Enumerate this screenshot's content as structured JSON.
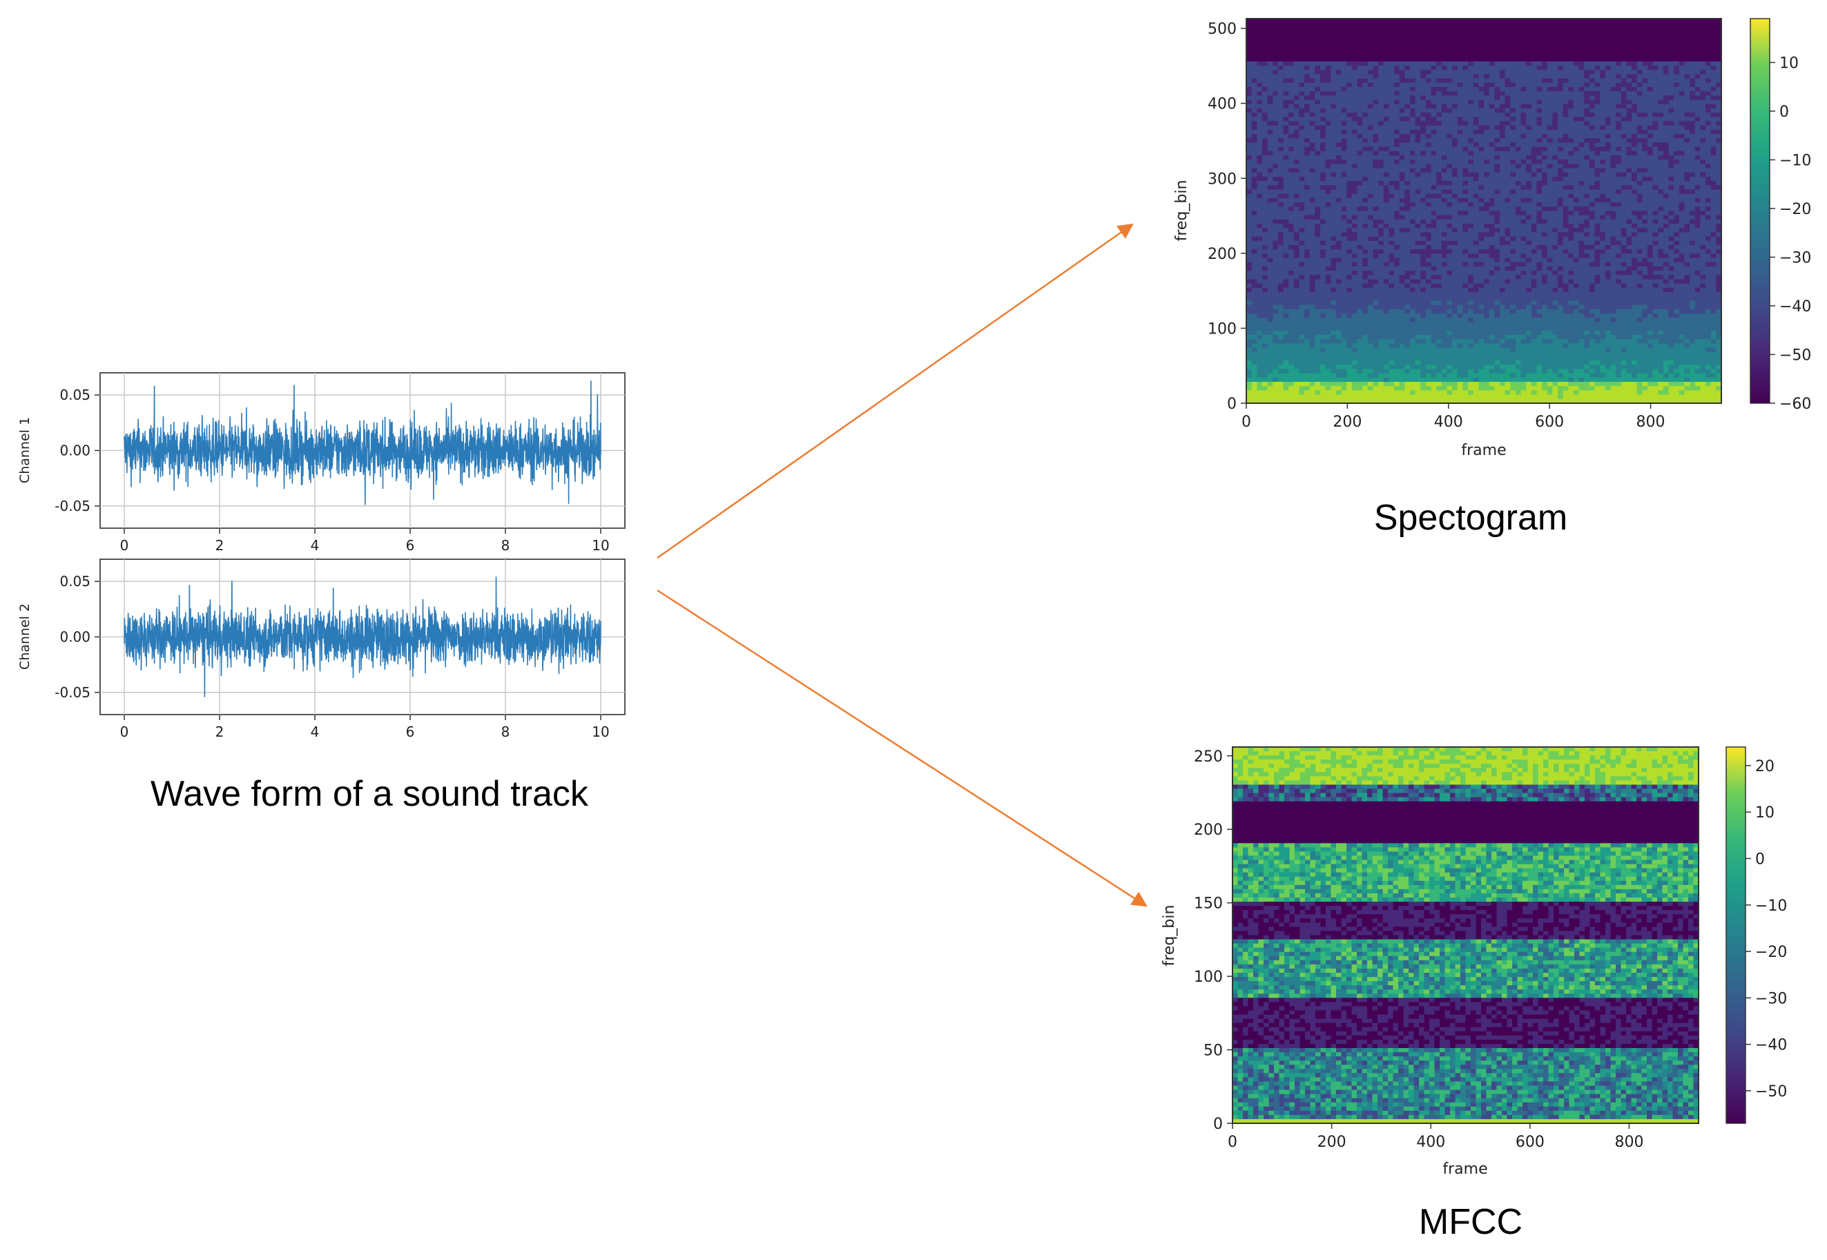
{
  "captions": {
    "waveform": "Wave form of a sound track",
    "spectrogram": "Spectogram",
    "mfcc": "MFCC"
  },
  "colors": {
    "wave": "#2b7bb9",
    "arrow": "#ed7d31",
    "grid": "#c8c8c8"
  },
  "chart_data": [
    {
      "type": "line",
      "ylabel": "Channel 1",
      "xlim": [
        0,
        10
      ],
      "ylim": [
        -0.07,
        0.07
      ],
      "xticks": [
        "0",
        "2",
        "4",
        "6",
        "8",
        "10"
      ],
      "yticks": [
        "0.05",
        "0.00",
        "-0.05"
      ],
      "grid": true,
      "series": [
        {
          "description": "noise-like audio waveform",
          "range": [
            -0.065,
            0.063
          ]
        }
      ]
    },
    {
      "type": "line",
      "ylabel": "Channel 2",
      "xlim": [
        0,
        10
      ],
      "ylim": [
        -0.07,
        0.07
      ],
      "xticks": [
        "0",
        "2",
        "4",
        "6",
        "8",
        "10"
      ],
      "yticks": [
        "0.05",
        "0.00",
        "-0.05"
      ],
      "grid": true,
      "series": [
        {
          "description": "noise-like audio waveform",
          "range": [
            -0.068,
            0.065
          ]
        }
      ]
    },
    {
      "type": "heatmap",
      "xlabel": "frame",
      "ylabel": "freq_bin",
      "xlim": [
        0,
        940
      ],
      "ylim": [
        0,
        513
      ],
      "xticks": [
        "0",
        "200",
        "400",
        "600",
        "800"
      ],
      "yticks": [
        "0",
        "100",
        "200",
        "300",
        "400",
        "500"
      ],
      "colorbar": {
        "range": [
          -60,
          19
        ],
        "ticks": [
          "10",
          "0",
          "−10",
          "−20",
          "−30",
          "−40",
          "−50",
          "−60"
        ]
      },
      "colormap": "viridis"
    },
    {
      "type": "heatmap",
      "xlabel": "frame",
      "ylabel": "freq_bin",
      "xlim": [
        0,
        940
      ],
      "ylim": [
        0,
        256
      ],
      "xticks": [
        "0",
        "200",
        "400",
        "600",
        "800"
      ],
      "yticks": [
        "0",
        "50",
        "100",
        "150",
        "200",
        "250"
      ],
      "colorbar": {
        "range": [
          -57,
          24
        ],
        "ticks": [
          "20",
          "10",
          "0",
          "−10",
          "−20",
          "−30",
          "−40",
          "−50"
        ]
      },
      "colormap": "viridis"
    }
  ]
}
